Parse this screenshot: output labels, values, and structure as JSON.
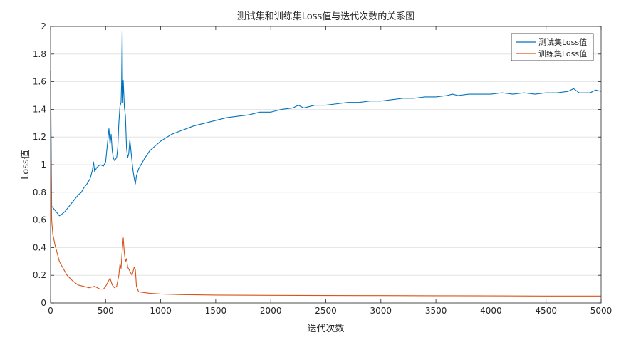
{
  "chart_data": {
    "type": "line",
    "title": "测试集和训练集Loss值与迭代次数的关系图",
    "xlabel": "迭代次数",
    "ylabel": "Loss值",
    "xlim": [
      0,
      5000
    ],
    "ylim": [
      0,
      2
    ],
    "xticks": [
      0,
      500,
      1000,
      1500,
      2000,
      2500,
      3000,
      3500,
      4000,
      4500,
      5000
    ],
    "yticks": [
      0,
      0.2,
      0.4,
      0.6,
      0.8,
      1,
      1.2,
      1.4,
      1.6,
      1.8,
      2
    ],
    "grid": true,
    "legend_position": "top-right",
    "series": [
      {
        "name": "测试集Loss值",
        "color": "#0072BD",
        "x": [
          0,
          10,
          20,
          50,
          80,
          100,
          130,
          150,
          200,
          250,
          280,
          300,
          330,
          360,
          380,
          390,
          400,
          420,
          450,
          480,
          500,
          520,
          530,
          540,
          550,
          560,
          570,
          580,
          600,
          610,
          620,
          630,
          640,
          645,
          650,
          655,
          660,
          670,
          680,
          690,
          700,
          710,
          720,
          730,
          740,
          750,
          760,
          770,
          780,
          800,
          850,
          900,
          1000,
          1100,
          1200,
          1300,
          1400,
          1500,
          1600,
          1700,
          1800,
          1900,
          2000,
          2100,
          2200,
          2250,
          2300,
          2400,
          2500,
          2600,
          2700,
          2800,
          2900,
          3000,
          3100,
          3200,
          3300,
          3400,
          3500,
          3600,
          3650,
          3700,
          3800,
          3900,
          4000,
          4100,
          4200,
          4300,
          4400,
          4500,
          4600,
          4700,
          4750,
          4800,
          4900,
          4950,
          5000
        ],
        "y": [
          1.68,
          0.7,
          0.69,
          0.66,
          0.63,
          0.64,
          0.66,
          0.68,
          0.73,
          0.78,
          0.8,
          0.83,
          0.86,
          0.9,
          0.96,
          1.02,
          0.95,
          0.98,
          1.0,
          0.99,
          1.02,
          1.18,
          1.26,
          1.15,
          1.22,
          1.1,
          1.05,
          1.03,
          1.05,
          1.12,
          1.3,
          1.42,
          1.45,
          1.6,
          1.97,
          1.45,
          1.61,
          1.42,
          1.35,
          1.12,
          1.05,
          1.08,
          1.18,
          1.1,
          1.02,
          0.95,
          0.9,
          0.86,
          0.92,
          0.97,
          1.04,
          1.1,
          1.17,
          1.22,
          1.25,
          1.28,
          1.3,
          1.32,
          1.34,
          1.35,
          1.36,
          1.38,
          1.38,
          1.4,
          1.41,
          1.43,
          1.41,
          1.43,
          1.43,
          1.44,
          1.45,
          1.45,
          1.46,
          1.46,
          1.47,
          1.48,
          1.48,
          1.49,
          1.49,
          1.5,
          1.51,
          1.5,
          1.51,
          1.51,
          1.51,
          1.52,
          1.51,
          1.52,
          1.51,
          1.52,
          1.52,
          1.53,
          1.55,
          1.52,
          1.52,
          1.54,
          1.53
        ]
      },
      {
        "name": "训练集Loss值",
        "color": "#D95319",
        "x": [
          0,
          10,
          20,
          40,
          60,
          80,
          100,
          150,
          200,
          250,
          300,
          350,
          400,
          450,
          480,
          500,
          520,
          540,
          560,
          580,
          600,
          620,
          630,
          640,
          650,
          660,
          670,
          680,
          690,
          700,
          720,
          740,
          750,
          760,
          770,
          780,
          800,
          900,
          1000,
          1200,
          1500,
          2000,
          2500,
          3000,
          3500,
          4000,
          4500,
          5000
        ],
        "y": [
          1.4,
          0.6,
          0.5,
          0.42,
          0.36,
          0.3,
          0.27,
          0.2,
          0.16,
          0.13,
          0.12,
          0.11,
          0.12,
          0.1,
          0.1,
          0.12,
          0.15,
          0.18,
          0.13,
          0.11,
          0.12,
          0.2,
          0.28,
          0.25,
          0.37,
          0.47,
          0.36,
          0.3,
          0.32,
          0.26,
          0.23,
          0.2,
          0.23,
          0.26,
          0.24,
          0.12,
          0.08,
          0.07,
          0.065,
          0.06,
          0.057,
          0.055,
          0.054,
          0.053,
          0.052,
          0.051,
          0.05,
          0.05
        ]
      }
    ]
  }
}
